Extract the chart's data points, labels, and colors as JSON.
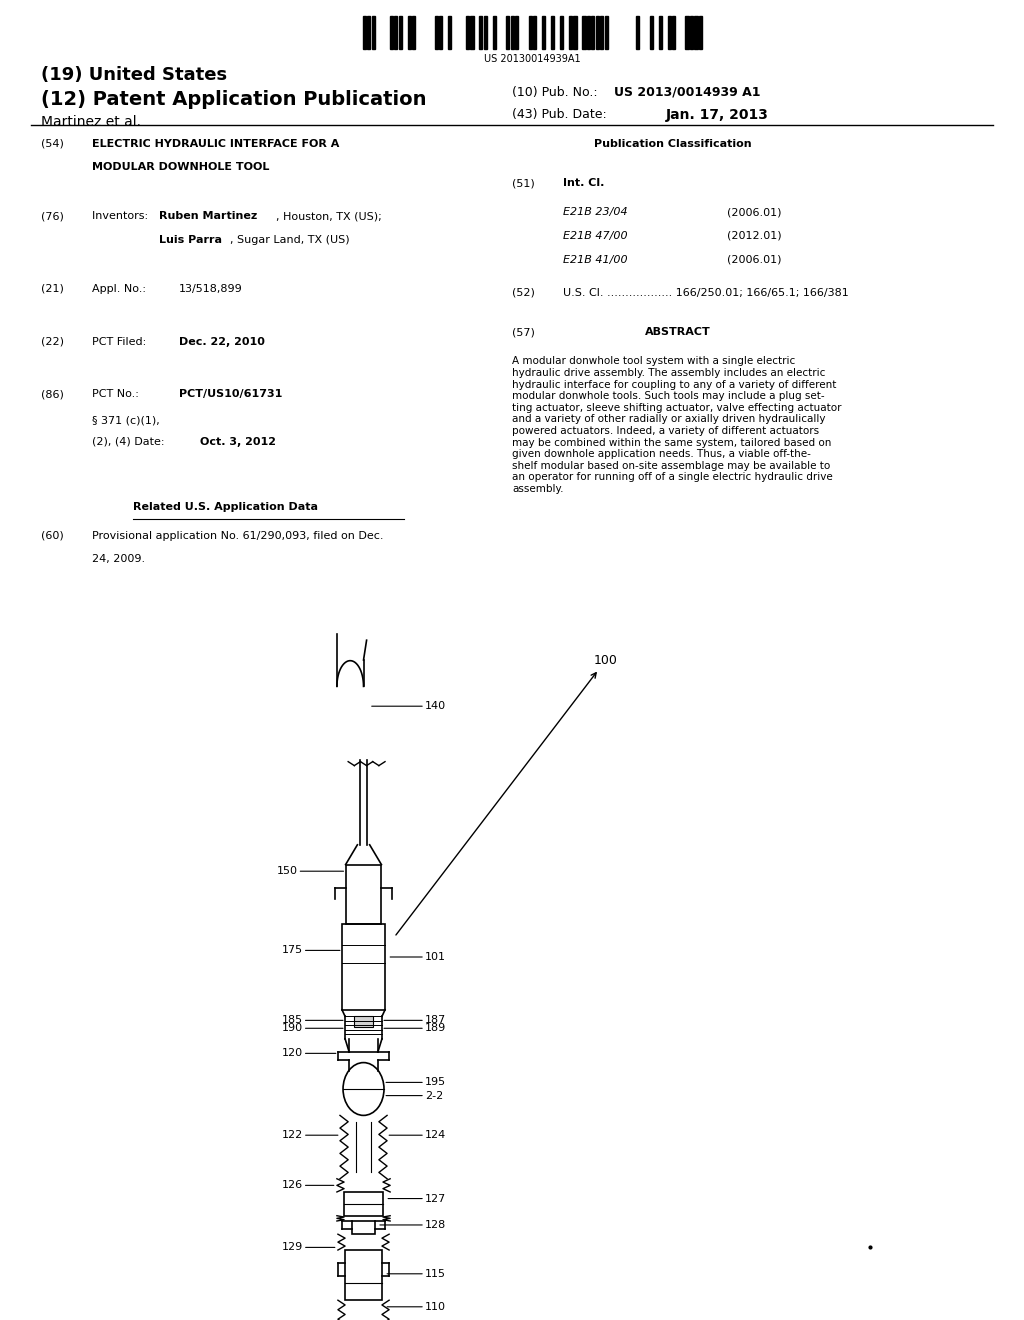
{
  "background_color": "#ffffff",
  "barcode_text": "US 20130014939A1",
  "patent_number": "(19) United States",
  "pub_type": "(12) Patent Application Publication",
  "pub_no_label": "(10) Pub. No.:",
  "pub_no_value": "US 2013/0014939 A1",
  "pub_date_label": "(43) Pub. Date:",
  "pub_date_value": "Jan. 17, 2013",
  "authors": "Martinez et al.",
  "related_data_title": "Related U.S. Application Data",
  "pub_class_title": "Publication Classification",
  "abstract_title": "ABSTRACT",
  "abstract_text": "A modular donwhole tool system with a single electric\nhydraulic drive assembly. The assembly includes an electric\nhydraulic interface for coupling to any of a variety of different\nmodular donwhole tools. Such tools may include a plug set-\nting actuator, sleeve shifting actuator, valve effecting actuator\nand a variety of other radially or axially driven hydraulically\npowered actuators. Indeed, a variety of different actuators\nmay be combined within the same system, tailored based on\ngiven downhole application needs. Thus, a viable off-the-\nshelf modular based on-site assemblage may be available to\nan operator for running off of a single electric hydraulic drive\nassembly."
}
